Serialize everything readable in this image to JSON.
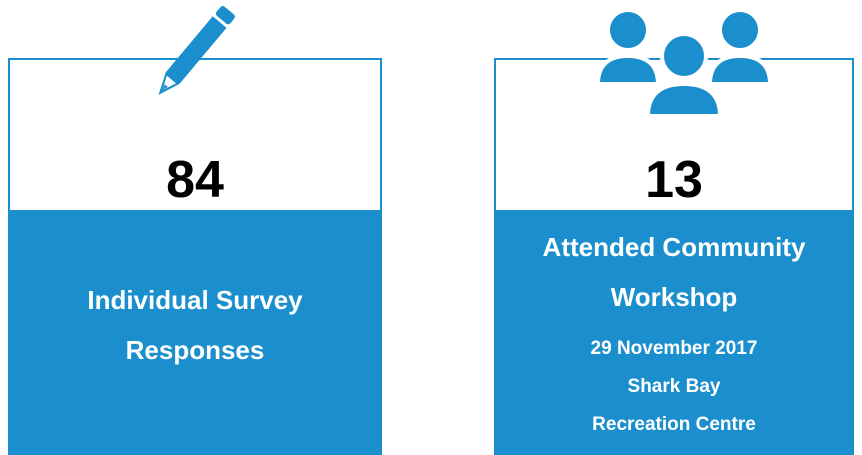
{
  "cards": [
    {
      "number": 84,
      "label_lines": [
        "Individual Survey",
        "Responses"
      ],
      "detail_lines": []
    },
    {
      "number": 13,
      "label_lines": [
        "Attended Community",
        "Workshop"
      ],
      "detail_lines": [
        "29 November 2017",
        "Shark Bay",
        "Recreation Centre"
      ]
    }
  ]
}
